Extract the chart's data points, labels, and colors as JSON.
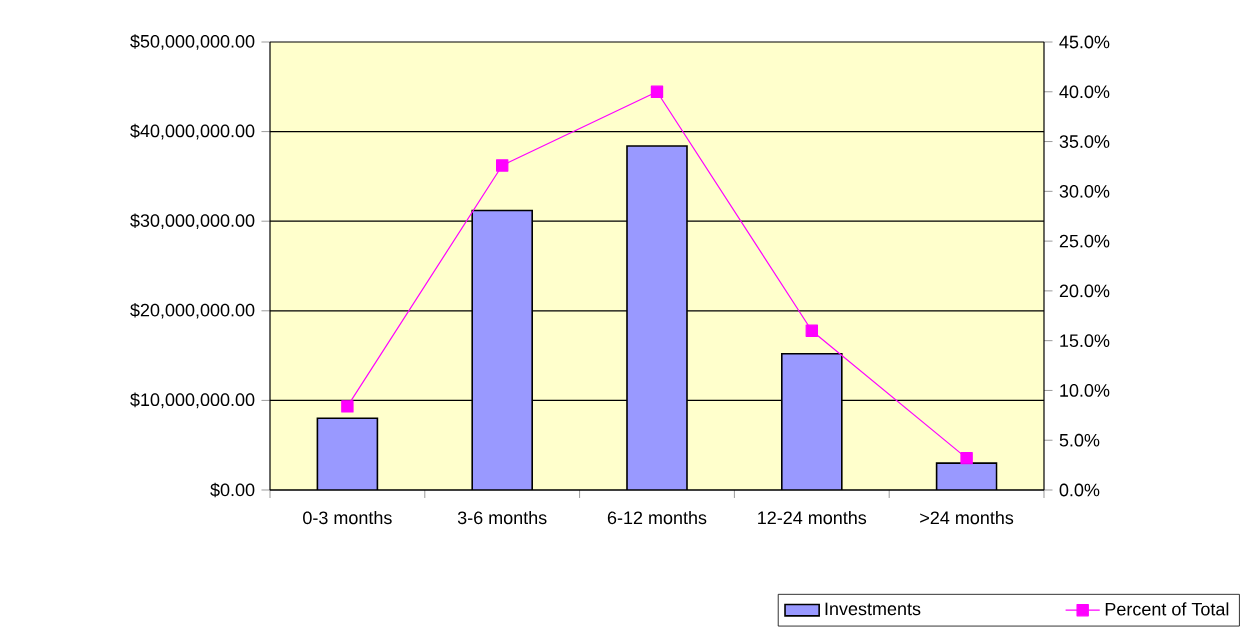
{
  "chart_data": {
    "type": "bar",
    "categories": [
      "0-3 months",
      "3-6 months",
      "6-12 months",
      "12-24 months",
      ">24 months"
    ],
    "series": [
      {
        "name": "Investments",
        "color": "#9999ff",
        "values": [
          8000000,
          31200000,
          38400000,
          15200000,
          3000000
        ]
      },
      {
        "name": "Percent of Total",
        "type": "line",
        "axis": "y2",
        "color": "#ff00ff",
        "marker": "square",
        "values": [
          8.4,
          32.6,
          40.0,
          16.0,
          3.2
        ]
      }
    ],
    "ylim": [
      0,
      50000000
    ],
    "yticks": [
      {
        "value": 0,
        "label": "$0.00"
      },
      {
        "value": 10000000,
        "label": "$10,000,000.00"
      },
      {
        "value": 20000000,
        "label": "$20,000,000.00"
      },
      {
        "value": 30000000,
        "label": "$30,000,000.00"
      },
      {
        "value": 40000000,
        "label": "$40,000,000.00"
      },
      {
        "value": 50000000,
        "label": "$50,000,000.00"
      }
    ],
    "y2lim": [
      0,
      45
    ],
    "y2ticks": [
      {
        "value": 0,
        "label": "0.0%"
      },
      {
        "value": 5,
        "label": "5.0%"
      },
      {
        "value": 10,
        "label": "10.0%"
      },
      {
        "value": 15,
        "label": "15.0%"
      },
      {
        "value": 20,
        "label": "20.0%"
      },
      {
        "value": 25,
        "label": "25.0%"
      },
      {
        "value": 30,
        "label": "30.0%"
      },
      {
        "value": 35,
        "label": "35.0%"
      },
      {
        "value": 40,
        "label": "40.0%"
      },
      {
        "value": 45,
        "label": "45.0%"
      }
    ],
    "grid": "y",
    "legend": "bottom right"
  }
}
